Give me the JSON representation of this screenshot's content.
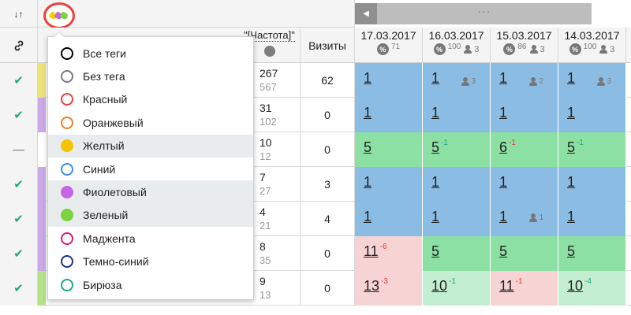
{
  "toolbar": {
    "sort_icon_text": "↓↑",
    "tag_colors": [
      "#f5d000",
      "#c765e0",
      "#7dd33f"
    ],
    "scroll_left_arrow": "◀",
    "scroll_thumb_dots": "···"
  },
  "header": {
    "freq_label": "\"[Частота]\"",
    "visits_label": "Визиты",
    "dates": [
      {
        "date": "17.03.2017",
        "pct": "71",
        "users": ""
      },
      {
        "date": "16.03.2017",
        "pct": "100",
        "users": "3"
      },
      {
        "date": "15.03.2017",
        "pct": "86",
        "users": "3"
      },
      {
        "date": "14.03.2017",
        "pct": "100",
        "users": "3"
      }
    ]
  },
  "colors": {
    "blue": "#8bbde4",
    "green": "#8ce0a3",
    "pink": "#f7d3d3",
    "lightgreen": "#c3efd0",
    "check": "#1fa87d"
  },
  "rows": [
    {
      "check": "✔",
      "stripe": "#ede37a",
      "f1": "267",
      "f2": "567",
      "visits": "62",
      "cells": [
        {
          "v": "1",
          "d": "",
          "u": "",
          "bg": "#8bbde4"
        },
        {
          "v": "1",
          "d": "",
          "u": "3",
          "bg": "#8bbde4"
        },
        {
          "v": "1",
          "d": "",
          "u": "2",
          "bg": "#8bbde4"
        },
        {
          "v": "1",
          "d": "",
          "u": "3",
          "bg": "#8bbde4"
        }
      ]
    },
    {
      "check": "✔",
      "stripe": "#c9a9e6",
      "f1": "31",
      "f2": "102",
      "visits": "0",
      "cells": [
        {
          "v": "1",
          "d": "",
          "u": "",
          "bg": "#8bbde4"
        },
        {
          "v": "1",
          "d": "",
          "u": "",
          "bg": "#8bbde4"
        },
        {
          "v": "1",
          "d": "",
          "u": "",
          "bg": "#8bbde4"
        },
        {
          "v": "1",
          "d": "",
          "u": "",
          "bg": "#8bbde4"
        }
      ]
    },
    {
      "check": "—",
      "stripe": "#ffffff",
      "f1": "10",
      "f2": "12",
      "visits": "0",
      "cells": [
        {
          "v": "5",
          "d": "",
          "u": "",
          "bg": "#8ce0a3"
        },
        {
          "v": "5",
          "d": "-1",
          "u": "",
          "bg": "#8ce0a3"
        },
        {
          "v": "6",
          "d": "-1",
          "u": "",
          "bg": "#8ce0a3"
        },
        {
          "v": "5",
          "d": "-1",
          "u": "",
          "bg": "#8ce0a3"
        }
      ]
    },
    {
      "check": "✔",
      "stripe": "#c9a9e6",
      "f1": "7",
      "f2": "27",
      "visits": "3",
      "cells": [
        {
          "v": "1",
          "d": "",
          "u": "",
          "bg": "#8bbde4"
        },
        {
          "v": "1",
          "d": "",
          "u": "",
          "bg": "#8bbde4"
        },
        {
          "v": "1",
          "d": "",
          "u": "",
          "bg": "#8bbde4"
        },
        {
          "v": "1",
          "d": "",
          "u": "",
          "bg": "#8bbde4"
        }
      ]
    },
    {
      "check": "✔",
      "stripe": "#c9a9e6",
      "f1": "4",
      "f2": "21",
      "visits": "4",
      "cells": [
        {
          "v": "1",
          "d": "",
          "u": "",
          "bg": "#8bbde4"
        },
        {
          "v": "1",
          "d": "",
          "u": "",
          "bg": "#8bbde4"
        },
        {
          "v": "1",
          "d": "",
          "u": "1",
          "bg": "#8bbde4"
        },
        {
          "v": "1",
          "d": "",
          "u": "",
          "bg": "#8bbde4"
        }
      ]
    },
    {
      "check": "✔",
      "stripe": "#c9a9e6",
      "f1": "8",
      "f2": "35",
      "visits": "0",
      "cells": [
        {
          "v": "11",
          "d": "-6",
          "u": "",
          "bg": "#f7d3d3"
        },
        {
          "v": "5",
          "d": "",
          "u": "",
          "bg": "#8ce0a3"
        },
        {
          "v": "5",
          "d": "",
          "u": "",
          "bg": "#8ce0a3"
        },
        {
          "v": "5",
          "d": "",
          "u": "",
          "bg": "#8ce0a3"
        }
      ]
    },
    {
      "check": "✔",
      "stripe": "#b6e38a",
      "f1": "9",
      "f2": "13",
      "visits": "0",
      "cells": [
        {
          "v": "13",
          "d": "-3",
          "u": "",
          "bg": "#f7d3d3"
        },
        {
          "v": "10",
          "d": "-1",
          "u": "",
          "bg": "#c3efd0"
        },
        {
          "v": "11",
          "d": "-1",
          "u": "",
          "bg": "#f7d3d3"
        },
        {
          "v": "10",
          "d": "-4",
          "u": "",
          "bg": "#c3efd0"
        }
      ]
    }
  ],
  "dropdown": {
    "items": [
      {
        "label": "Все теги",
        "color": "#000000",
        "filled": false,
        "highlight": false
      },
      {
        "label": "Без тега",
        "color": "#7a7a7a",
        "filled": false,
        "highlight": false
      },
      {
        "label": "Красный",
        "color": "#e8413a",
        "filled": false,
        "highlight": false
      },
      {
        "label": "Оранжевый",
        "color": "#e8822a",
        "filled": false,
        "highlight": false
      },
      {
        "label": "Желтый",
        "color": "#f5c400",
        "filled": true,
        "highlight": true
      },
      {
        "label": "Синий",
        "color": "#3a8fe8",
        "filled": false,
        "highlight": false
      },
      {
        "label": "Фиолетовый",
        "color": "#c765e0",
        "filled": true,
        "highlight": true
      },
      {
        "label": "Зеленый",
        "color": "#7dd33f",
        "filled": true,
        "highlight": true
      },
      {
        "label": "Маджента",
        "color": "#d81b7a",
        "filled": false,
        "highlight": false
      },
      {
        "label": "Темно-синий",
        "color": "#1c2f8a",
        "filled": false,
        "highlight": false
      },
      {
        "label": "Бирюза",
        "color": "#1aa88a",
        "filled": false,
        "highlight": false
      }
    ]
  }
}
